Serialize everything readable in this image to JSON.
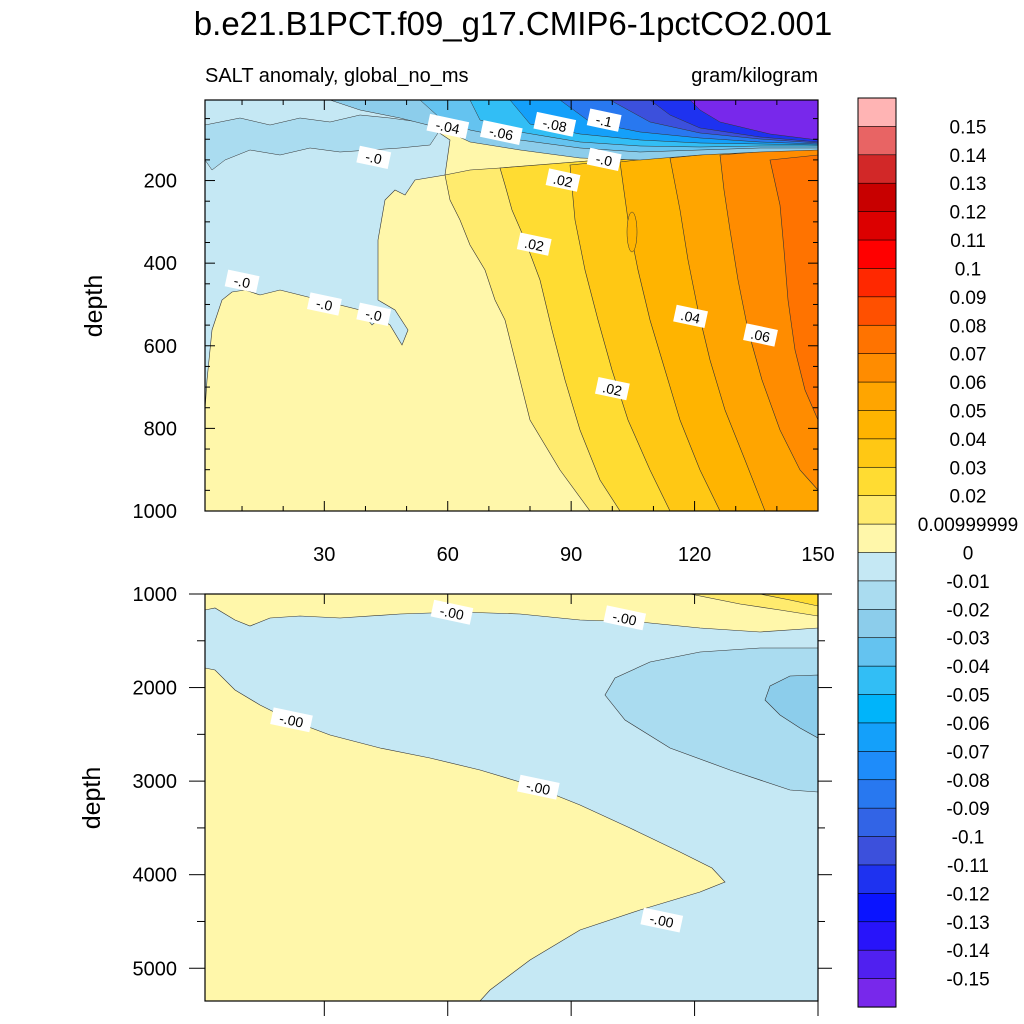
{
  "chart_data": [
    {
      "type": "filled-contour",
      "panel": "upper",
      "title": "b.e21.B1PCT.f09_g17.CMIP6-1pctCO2.001",
      "left_subtitle": "SALT anomaly, global_no_ms",
      "right_subtitle": "gram/kilogram",
      "xlabel": "",
      "ylabel": "depth",
      "xlim": [
        1,
        150
      ],
      "ylim": [
        1000,
        5
      ],
      "x_ticks": [
        "30",
        "60",
        "90",
        "120",
        "150"
      ],
      "y_ticks": [
        "200",
        "400",
        "600",
        "800",
        "1000"
      ],
      "contour_labels": [
        {
          "text": "-.04",
          "x": 60,
          "y": 70
        },
        {
          "text": "-.06",
          "x": 73,
          "y": 85
        },
        {
          "text": "-.08",
          "x": 86,
          "y": 65
        },
        {
          "text": "-.1",
          "x": 98,
          "y": 55
        },
        {
          "text": "-.0",
          "x": 42,
          "y": 145
        },
        {
          "text": "-.0",
          "x": 98,
          "y": 150
        },
        {
          "text": ".02",
          "x": 88,
          "y": 200
        },
        {
          "text": ".02",
          "x": 81,
          "y": 355
        },
        {
          "text": "-.0",
          "x": 10,
          "y": 445
        },
        {
          "text": "-.0",
          "x": 30,
          "y": 500
        },
        {
          "text": "-.0",
          "x": 42,
          "y": 525
        },
        {
          "text": ".04",
          "x": 119,
          "y": 530
        },
        {
          "text": ".06",
          "x": 136,
          "y": 575
        },
        {
          "text": ".02",
          "x": 100,
          "y": 705
        }
      ]
    },
    {
      "type": "filled-contour",
      "panel": "lower",
      "xlabel": "",
      "ylabel": "depth",
      "xlim": [
        1,
        150
      ],
      "ylim": [
        5350,
        1000
      ],
      "y_ticks": [
        "1000",
        "2000",
        "3000",
        "4000",
        "5000"
      ],
      "contour_labels": [
        {
          "text": "-.00",
          "x": 61,
          "y": 1200
        },
        {
          "text": "-.00",
          "x": 103,
          "y": 1260
        },
        {
          "text": "-.00",
          "x": 22,
          "y": 2350
        },
        {
          "text": "-.00",
          "x": 82,
          "y": 3070
        },
        {
          "text": "-.00",
          "x": 112,
          "y": 4490
        }
      ]
    }
  ],
  "colorbar": {
    "labels": [
      "0.15",
      "0.14",
      "0.13",
      "0.12",
      "0.11",
      "0.1",
      "0.09",
      "0.08",
      "0.07",
      "0.06",
      "0.05",
      "0.04",
      "0.03",
      "0.02",
      "0.00999999",
      "0",
      "-0.01",
      "-0.02",
      "-0.03",
      "-0.04",
      "-0.05",
      "-0.06",
      "-0.07",
      "-0.08",
      "-0.09",
      "-0.1",
      "-0.11",
      "-0.12",
      "-0.13",
      "-0.14",
      "-0.15"
    ],
    "colors": [
      "#FFB4B4",
      "#E86464",
      "#D22828",
      "#C80000",
      "#DC0000",
      "#FF0000",
      "#FF2800",
      "#FF5000",
      "#FF7300",
      "#FF8C00",
      "#FFA500",
      "#FFB400",
      "#FFC814",
      "#FFDC32",
      "#FFEB6E",
      "#FFF7AA",
      "#C5E8F4",
      "#AADCF0",
      "#8CCDEB",
      "#64C3F0",
      "#32BEF5",
      "#00B4FA",
      "#14A0FA",
      "#1E8CFA",
      "#2878F0",
      "#3264E6",
      "#3C50DC",
      "#1E32F0",
      "#0A14FF",
      "#2814FA",
      "#5020F0",
      "#7828EB"
    ]
  }
}
